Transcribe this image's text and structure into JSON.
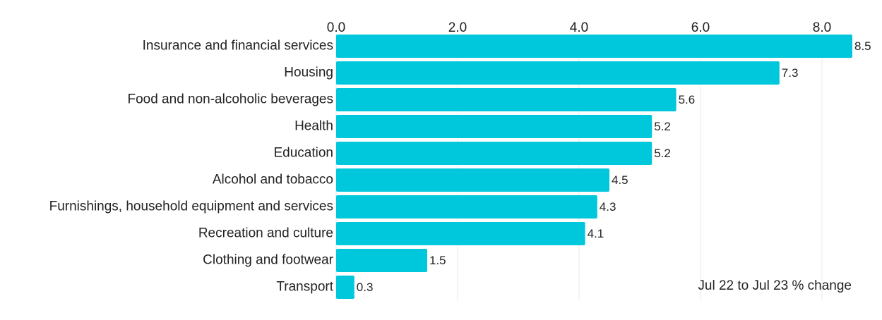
{
  "chart_data": {
    "type": "bar",
    "orientation": "horizontal",
    "categories": [
      "Insurance and financial services",
      "Housing",
      "Food and non-alcoholic beverages",
      "Health",
      "Education",
      "Alcohol and tobacco",
      "Furnishings, household equipment and services",
      "Recreation and culture",
      "Clothing and footwear",
      "Transport"
    ],
    "values": [
      8.5,
      7.3,
      5.6,
      5.2,
      5.2,
      4.5,
      4.3,
      4.1,
      1.5,
      0.3
    ],
    "value_labels": [
      "8.5",
      "7.3",
      "5.6",
      "5.2",
      "5.2",
      "4.5",
      "4.3",
      "4.1",
      "1.5",
      "0.3"
    ],
    "xticks": [
      0,
      2,
      4,
      6,
      8
    ],
    "xtick_labels": [
      "0.0",
      "2.0",
      "4.0",
      "6.0",
      "8.0"
    ],
    "xlim": [
      0,
      8.5
    ],
    "xaxis_position": "top",
    "grid": true,
    "bar_color": "#00c8dc",
    "annotation": "Jul 22 to Jul 23 % change",
    "annotation_position": "bottom-right"
  }
}
